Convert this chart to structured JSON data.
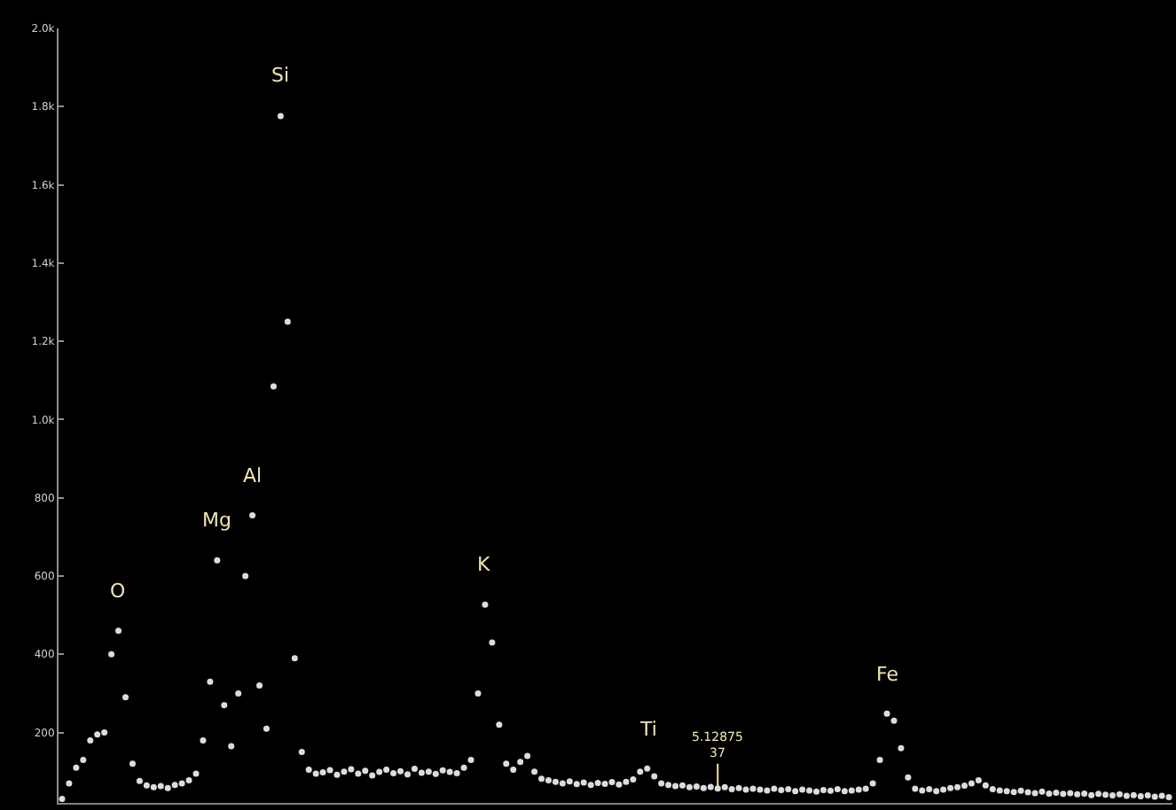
{
  "chart_data": {
    "type": "scatter",
    "marker": "circle",
    "color": "#dcdcdc",
    "grid": false,
    "tick_labels": "y",
    "categories": [
      null,
      null,
      null,
      null,
      null,
      null,
      null,
      null,
      null,
      null,
      null,
      null,
      null,
      null,
      null,
      null,
      null,
      null,
      null,
      null,
      null,
      null,
      null,
      null,
      null,
      null,
      null,
      null,
      null,
      null,
      null,
      null,
      null,
      null,
      null,
      null,
      null,
      null,
      null,
      null,
      null,
      null,
      null,
      null,
      null,
      null,
      null,
      null,
      null,
      null,
      null,
      null,
      null,
      null,
      null,
      null,
      null,
      null,
      null,
      null,
      null,
      null,
      null,
      null,
      null,
      null,
      null,
      null,
      null,
      null,
      null,
      null,
      null,
      null,
      null,
      null,
      null,
      null,
      null,
      null,
      null,
      null,
      null,
      null,
      null,
      null,
      null,
      null,
      null,
      null,
      null,
      null,
      null,
      null,
      null,
      null,
      null,
      null,
      null,
      null,
      null,
      null,
      null,
      null,
      null,
      null,
      null,
      null,
      null,
      null,
      null,
      null,
      null,
      null,
      null,
      null,
      null,
      null,
      null,
      null,
      null,
      null,
      null,
      null,
      null,
      null,
      null,
      null,
      null,
      null,
      null,
      null,
      null,
      null,
      null,
      null,
      null,
      null,
      null,
      null,
      null,
      null,
      null,
      null,
      null,
      null,
      null,
      null,
      null,
      null,
      null,
      null,
      null,
      null,
      null,
      null,
      null,
      null
    ],
    "values": [
      30,
      70,
      110,
      130,
      180,
      195,
      200,
      400,
      460,
      290,
      120,
      76,
      65,
      60,
      63,
      58,
      66,
      70,
      78,
      95,
      180,
      330,
      640,
      270,
      165,
      300,
      600,
      755,
      320,
      210,
      1085,
      1776,
      1250,
      390,
      150,
      105,
      95,
      98,
      104,
      92,
      100,
      106,
      95,
      102,
      90,
      99,
      105,
      96,
      101,
      93,
      107,
      97,
      100,
      94,
      103,
      99,
      96,
      110,
      130,
      300,
      527,
      430,
      220,
      120,
      105,
      125,
      140,
      100,
      82,
      78,
      74,
      70,
      75,
      68,
      72,
      66,
      71,
      69,
      73,
      67,
      74,
      80,
      100,
      108,
      88,
      70,
      66,
      63,
      65,
      60,
      62,
      58,
      61,
      57,
      60,
      55,
      58,
      54,
      56,
      54,
      52,
      56,
      53,
      55,
      50,
      54,
      52,
      49,
      53,
      51,
      55,
      50,
      52,
      54,
      56,
      70,
      130,
      248,
      230,
      160,
      85,
      56,
      52,
      55,
      50,
      54,
      58,
      60,
      64,
      70,
      78,
      65,
      55,
      52,
      50,
      48,
      51,
      47,
      45,
      49,
      44,
      46,
      43,
      45,
      42,
      44,
      40,
      43,
      41,
      39,
      42,
      38,
      40,
      37,
      39,
      36,
      38,
      35
    ],
    "ylim": [
      20,
      2000
    ],
    "yticks": [
      {
        "value": 200,
        "label": "200"
      },
      {
        "value": 400,
        "label": "400"
      },
      {
        "value": 600,
        "label": "600"
      },
      {
        "value": 800,
        "label": "800"
      },
      {
        "value": 1000,
        "label": "1.0k"
      },
      {
        "value": 1200,
        "label": "1.2k"
      },
      {
        "value": 1400,
        "label": "1.4k"
      },
      {
        "value": 1600,
        "label": "1.6k"
      },
      {
        "value": 1800,
        "label": "1.8k"
      },
      {
        "value": 2000,
        "label": "2.0k"
      }
    ],
    "annotations": [
      {
        "text": "O",
        "y": 460
      },
      {
        "text": "Mg",
        "y": 640
      },
      {
        "text": "Al",
        "y": 755
      },
      {
        "text": "Si",
        "y": 1776
      },
      {
        "text": "K",
        "y": 527
      },
      {
        "text": "Ti",
        "y": 108
      },
      {
        "text": "Fe",
        "y": 248
      },
      {
        "text": "5.12875\n37",
        "y": 57
      }
    ]
  }
}
